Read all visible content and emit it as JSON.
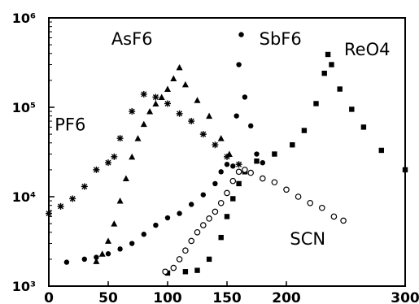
{
  "chart_data": {
    "type": "scatter",
    "title": "",
    "xlabel": "",
    "ylabel": "",
    "xlim": [
      0,
      300
    ],
    "ylim": [
      1000,
      1000000
    ],
    "yscale": "log",
    "grid": false,
    "legend": "none",
    "x_ticks": [
      {
        "value": 0,
        "label": "0"
      },
      {
        "value": 50,
        "label": "50"
      },
      {
        "value": 100,
        "label": "100"
      },
      {
        "value": 150,
        "label": "150"
      },
      {
        "value": 200,
        "label": "200"
      },
      {
        "value": 300,
        "label": "300"
      }
    ],
    "y_ticks": [
      {
        "value": 1000,
        "label": "10³"
      },
      {
        "value": 10000,
        "label": "10⁴"
      },
      {
        "value": 100000,
        "label": "10⁵"
      },
      {
        "value": 1000000,
        "label": "10⁶"
      }
    ],
    "series": [
      {
        "name": "PF6",
        "marker": "star",
        "color": "#000000",
        "points": [
          [
            0,
            6500
          ],
          [
            10,
            7800
          ],
          [
            20,
            9500
          ],
          [
            30,
            13000
          ],
          [
            40,
            20000
          ],
          [
            50,
            24000
          ],
          [
            55,
            28000
          ],
          [
            60,
            45000
          ],
          [
            70,
            90000
          ],
          [
            80,
            140000
          ],
          [
            90,
            130000
          ],
          [
            100,
            110000
          ],
          [
            110,
            85000
          ],
          [
            120,
            70000
          ],
          [
            130,
            50000
          ],
          [
            140,
            38000
          ],
          [
            150,
            28000
          ],
          [
            160,
            23000
          ]
        ]
      },
      {
        "name": "AsF6",
        "marker": "triangle",
        "color": "#000000",
        "points": [
          [
            40,
            1900
          ],
          [
            45,
            2300
          ],
          [
            50,
            3200
          ],
          [
            55,
            5000
          ],
          [
            60,
            9000
          ],
          [
            65,
            16000
          ],
          [
            70,
            28000
          ],
          [
            75,
            45000
          ],
          [
            80,
            65000
          ],
          [
            85,
            90000
          ],
          [
            90,
            110000
          ],
          [
            95,
            130000
          ],
          [
            100,
            160000
          ],
          [
            105,
            210000
          ],
          [
            110,
            280000
          ],
          [
            115,
            180000
          ],
          [
            125,
            120000
          ],
          [
            135,
            80000
          ],
          [
            145,
            45000
          ],
          [
            152,
            30000
          ]
        ]
      },
      {
        "name": "SbF6",
        "marker": "circle-filled",
        "color": "#000000",
        "points": [
          [
            15,
            1850
          ],
          [
            30,
            2000
          ],
          [
            40,
            2100
          ],
          [
            50,
            2300
          ],
          [
            60,
            2600
          ],
          [
            70,
            3000
          ],
          [
            80,
            3800
          ],
          [
            90,
            4800
          ],
          [
            100,
            5800
          ],
          [
            110,
            6500
          ],
          [
            120,
            8200
          ],
          [
            130,
            10500
          ],
          [
            140,
            14000
          ],
          [
            145,
            19000
          ],
          [
            150,
            23000
          ],
          [
            155,
            22000
          ],
          [
            158,
            80000
          ],
          [
            160,
            300000
          ],
          [
            162,
            650000
          ],
          [
            165,
            130000
          ],
          [
            170,
            62000
          ],
          [
            175,
            30000
          ],
          [
            180,
            24000
          ]
        ]
      },
      {
        "name": "ReO4",
        "marker": "square-filled",
        "color": "#000000",
        "points": [
          [
            100,
            1400
          ],
          [
            115,
            1450
          ],
          [
            125,
            1500
          ],
          [
            135,
            2000
          ],
          [
            145,
            3500
          ],
          [
            150,
            6000
          ],
          [
            155,
            9500
          ],
          [
            160,
            14000
          ],
          [
            165,
            19000
          ],
          [
            175,
            25000
          ],
          [
            190,
            30000
          ],
          [
            205,
            38000
          ],
          [
            215,
            55000
          ],
          [
            225,
            110000
          ],
          [
            232,
            240000
          ],
          [
            235,
            390000
          ],
          [
            238,
            300000
          ],
          [
            245,
            160000
          ],
          [
            255,
            95000
          ],
          [
            265,
            60000
          ],
          [
            280,
            33000
          ],
          [
            300,
            20000
          ]
        ]
      },
      {
        "name": "SCN",
        "marker": "circle-open",
        "color": "#000000",
        "points": [
          [
            98,
            1450
          ],
          [
            105,
            1600
          ],
          [
            110,
            2000
          ],
          [
            115,
            2500
          ],
          [
            120,
            3200
          ],
          [
            125,
            4000
          ],
          [
            130,
            4800
          ],
          [
            135,
            5700
          ],
          [
            140,
            6800
          ],
          [
            145,
            8500
          ],
          [
            150,
            11000
          ],
          [
            155,
            15000
          ],
          [
            160,
            19000
          ],
          [
            165,
            20000
          ],
          [
            170,
            18500
          ],
          [
            180,
            16000
          ],
          [
            190,
            14500
          ],
          [
            200,
            12000
          ],
          [
            210,
            10000
          ],
          [
            220,
            8500
          ],
          [
            230,
            7500
          ],
          [
            240,
            6000
          ],
          [
            248,
            5400
          ]
        ]
      }
    ],
    "annotations": [
      {
        "text": "AsF6",
        "x": 70,
        "y": 500000
      },
      {
        "text": "SbF6",
        "x": 195,
        "y": 500000
      },
      {
        "text": "ReO4",
        "x": 268,
        "y": 380000
      },
      {
        "text": "PF6",
        "x": 18,
        "y": 55000
      },
      {
        "text": "SCN",
        "x": 218,
        "y": 2900
      }
    ]
  }
}
